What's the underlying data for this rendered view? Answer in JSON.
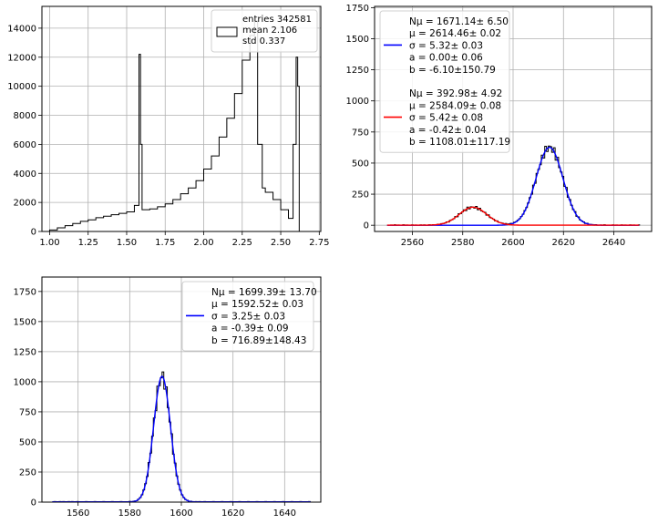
{
  "chart_data": [
    {
      "id": "top-left",
      "type": "histogram",
      "xlim": [
        0.95,
        2.76
      ],
      "ylim": [
        0,
        15500
      ],
      "xticks": [
        1.0,
        1.25,
        1.5,
        1.75,
        2.0,
        2.25,
        2.5,
        2.75
      ],
      "xtick_labels": [
        "1.00",
        "1.25",
        "1.50",
        "1.75",
        "2.00",
        "2.25",
        "2.50",
        "2.75"
      ],
      "yticks": [
        0,
        2000,
        4000,
        6000,
        8000,
        10000,
        12000,
        14000
      ],
      "ytick_labels": [
        "0",
        "2000",
        "4000",
        "6000",
        "8000",
        "10000",
        "12000",
        "14000"
      ],
      "grid": true,
      "legend": {
        "placement": "top-right",
        "lines": [
          "entries 342581",
          "mean  2.106",
          "std   0.337"
        ]
      },
      "x": [
        1.0,
        1.05,
        1.1,
        1.15,
        1.2,
        1.25,
        1.3,
        1.35,
        1.4,
        1.45,
        1.5,
        1.55,
        1.58,
        1.59,
        1.6,
        1.65,
        1.7,
        1.75,
        1.8,
        1.85,
        1.9,
        1.95,
        2.0,
        2.05,
        2.1,
        2.15,
        2.2,
        2.25,
        2.3,
        2.33,
        2.35,
        2.38,
        2.4,
        2.45,
        2.5,
        2.55,
        2.58,
        2.6,
        2.61,
        2.62
      ],
      "y": [
        100,
        250,
        400,
        550,
        700,
        800,
        950,
        1050,
        1150,
        1250,
        1350,
        1800,
        12200,
        6000,
        1500,
        1550,
        1700,
        1900,
        2200,
        2600,
        3000,
        3500,
        4300,
        5200,
        6500,
        7800,
        9500,
        11800,
        13500,
        14500,
        6000,
        3000,
        2700,
        2200,
        1500,
        900,
        6000,
        12000,
        10000,
        0
      ]
    },
    {
      "id": "top-right",
      "type": "histogram+fit",
      "xlim": [
        2545,
        2655
      ],
      "ylim": [
        -50,
        1760
      ],
      "xticks": [
        2560,
        2580,
        2600,
        2620,
        2640
      ],
      "xtick_labels": [
        "2560",
        "2580",
        "2600",
        "2620",
        "2640"
      ],
      "yticks": [
        0,
        250,
        500,
        750,
        1000,
        1250,
        1500,
        1750
      ],
      "ytick_labels": [
        "0",
        "250",
        "500",
        "750",
        "1000",
        "1250",
        "1500",
        "1750"
      ],
      "grid": true,
      "legend": {
        "placement": "top-left",
        "groups": [
          {
            "color": "#0000ff",
            "lines": [
              "Nμ = 1671.14±  6.50",
              "μ = 2614.46±  0.02",
              "σ =   5.32±  0.03",
              "a =   0.00±  0.06",
              "b =  -6.10±150.79"
            ]
          },
          {
            "color": "#ff0000",
            "lines": [
              "Nμ = 392.98±  4.92",
              "μ = 2584.09±  0.08",
              "σ =   5.42±  0.08",
              "a =  -0.42±  0.04",
              "b = 1108.01±117.19"
            ]
          }
        ]
      },
      "fits": [
        {
          "name": "blue",
          "color": "#0000ff",
          "N": 1671.14,
          "mu": 2614.46,
          "sigma": 5.32,
          "a": 0.0,
          "b": -6.1,
          "range": [
            2550,
            2650
          ]
        },
        {
          "name": "red",
          "color": "#ff0000",
          "N": 392.98,
          "mu": 2584.09,
          "sigma": 5.42,
          "a": -0.42,
          "b": 1108.01,
          "range": [
            2550,
            2650
          ]
        }
      ]
    },
    {
      "id": "bottom-left",
      "type": "histogram+fit",
      "xlim": [
        1546,
        1654
      ],
      "ylim": [
        0,
        1870
      ],
      "xticks": [
        1560,
        1580,
        1600,
        1620,
        1640
      ],
      "xtick_labels": [
        "1560",
        "1580",
        "1600",
        "1620",
        "1640"
      ],
      "yticks": [
        0,
        250,
        500,
        750,
        1000,
        1250,
        1500,
        1750
      ],
      "ytick_labels": [
        "0",
        "250",
        "500",
        "750",
        "1000",
        "1250",
        "1500",
        "1750"
      ],
      "grid": true,
      "legend": {
        "placement": "top-right",
        "groups": [
          {
            "color": "#0000ff",
            "lines": [
              "Nμ = 1699.39± 13.70",
              "μ = 1592.52±  0.03",
              "σ =   3.25±  0.03",
              "a =  -0.39±  0.09",
              "b = 716.89±148.43"
            ]
          }
        ]
      },
      "fits": [
        {
          "name": "blue",
          "color": "#0000ff",
          "N": 1699.39,
          "mu": 1592.52,
          "sigma": 3.25,
          "a": -0.39,
          "b": 716.89,
          "range": [
            1550,
            1650
          ]
        }
      ]
    }
  ]
}
